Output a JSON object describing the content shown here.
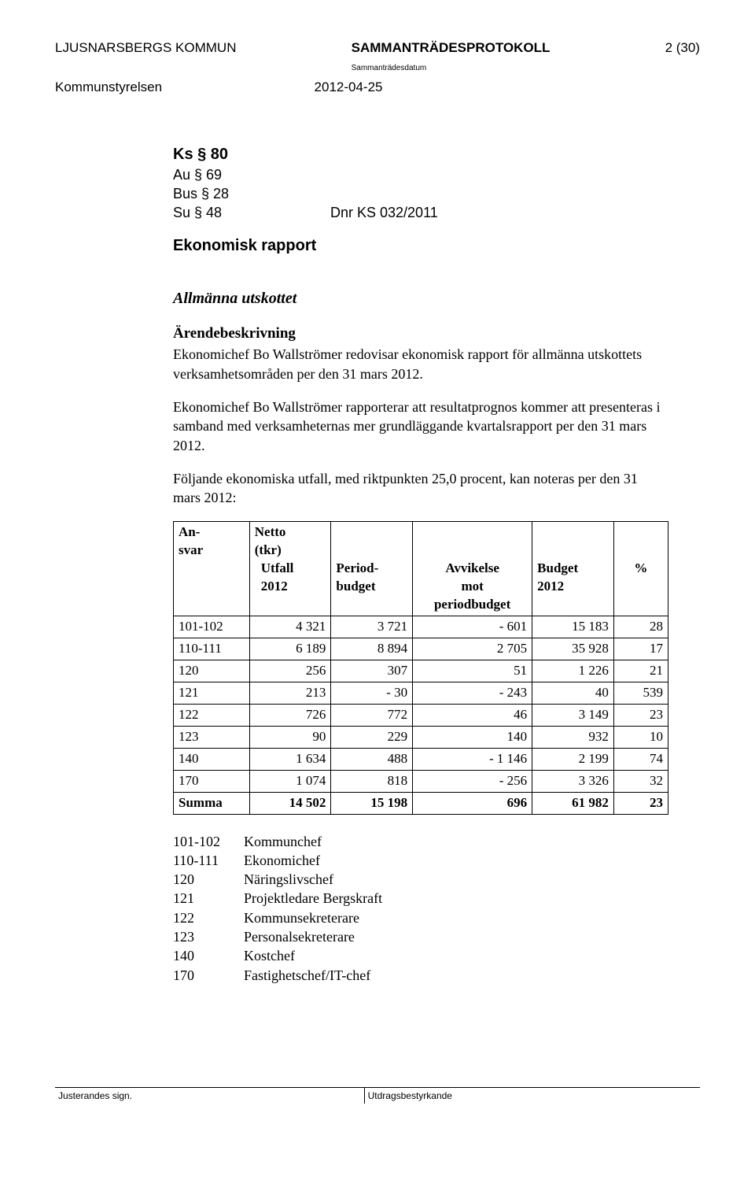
{
  "header": {
    "org": "LJUSNARSBERGS KOMMUN",
    "doc_title": "SAMMANTRÄDESPROTOKOLL",
    "date_label": "Sammanträdesdatum",
    "page": "2 (30)",
    "committee": "Kommunstyrelsen",
    "date": "2012-04-25"
  },
  "refs": {
    "ks": "Ks § 80",
    "au": "Au § 69",
    "bus": "Bus § 28",
    "su": "Su § 48",
    "dnr": "Dnr KS 032/2011"
  },
  "title": "Ekonomisk rapport",
  "section": "Allmänna utskottet",
  "subheading": "Ärendebeskrivning",
  "para1": "Ekonomichef Bo Wallströmer redovisar ekonomisk rapport för allmänna utskottets verksamhetsområden per den 31 mars 2012.",
  "para2": "Ekonomichef Bo Wallströmer rapporterar att resultatprognos kommer att presenteras i samband med verksamheternas mer grundläggande kvartalsrapport per den 31 mars 2012.",
  "para3": "Följande ekonomiska utfall, med riktpunkten 25,0 procent, kan noteras per den 31 mars 2012:",
  "table": {
    "head": {
      "c1a": "An-",
      "c1b": "svar",
      "c2a": "Netto",
      "c2b": "(tkr)",
      "c2c": "Utfall",
      "c2d": "2012",
      "c3a": "Period-",
      "c3b": "budget",
      "c4a": "Avvikelse",
      "c4b": "mot",
      "c4c": "periodbudget",
      "c5a": "Budget",
      "c5b": "2012",
      "c6": "%"
    },
    "rows": [
      {
        "a": "101-102",
        "b": "4 321",
        "c": "3 721",
        "d": "- 601",
        "e": "15 183",
        "f": "28"
      },
      {
        "a": "110-111",
        "b": "6 189",
        "c": "8 894",
        "d": "2 705",
        "e": "35 928",
        "f": "17"
      },
      {
        "a": "120",
        "b": "256",
        "c": "307",
        "d": "51",
        "e": "1 226",
        "f": "21"
      },
      {
        "a": "121",
        "b": "213",
        "c": "- 30",
        "d": "- 243",
        "e": "40",
        "f": "539"
      },
      {
        "a": "122",
        "b": "726",
        "c": "772",
        "d": "46",
        "e": "3 149",
        "f": "23"
      },
      {
        "a": "123",
        "b": "90",
        "c": "229",
        "d": "140",
        "e": "932",
        "f": "10"
      },
      {
        "a": "140",
        "b": "1 634",
        "c": "488",
        "d": "- 1 146",
        "e": "2 199",
        "f": "74"
      },
      {
        "a": "170",
        "b": "1 074",
        "c": "818",
        "d": "- 256",
        "e": "3 326",
        "f": "32"
      }
    ],
    "sum": {
      "a": "Summa",
      "b": "14 502",
      "c": "15 198",
      "d": "696",
      "e": "61 982",
      "f": "23"
    }
  },
  "legend": [
    {
      "code": "101-102",
      "label": "Kommunchef"
    },
    {
      "code": "110-111",
      "label": "Ekonomichef"
    },
    {
      "code": "120",
      "label": "Näringslivschef"
    },
    {
      "code": "121",
      "label": "Projektledare Bergskraft"
    },
    {
      "code": "122",
      "label": "Kommunsekreterare"
    },
    {
      "code": "123",
      "label": "Personalsekreterare"
    },
    {
      "code": "140",
      "label": "Kostchef"
    },
    {
      "code": "170",
      "label": "Fastighetschef/IT-chef"
    }
  ],
  "footer": {
    "left": "Justerandes sign.",
    "right": "Utdragsbestyrkande"
  }
}
